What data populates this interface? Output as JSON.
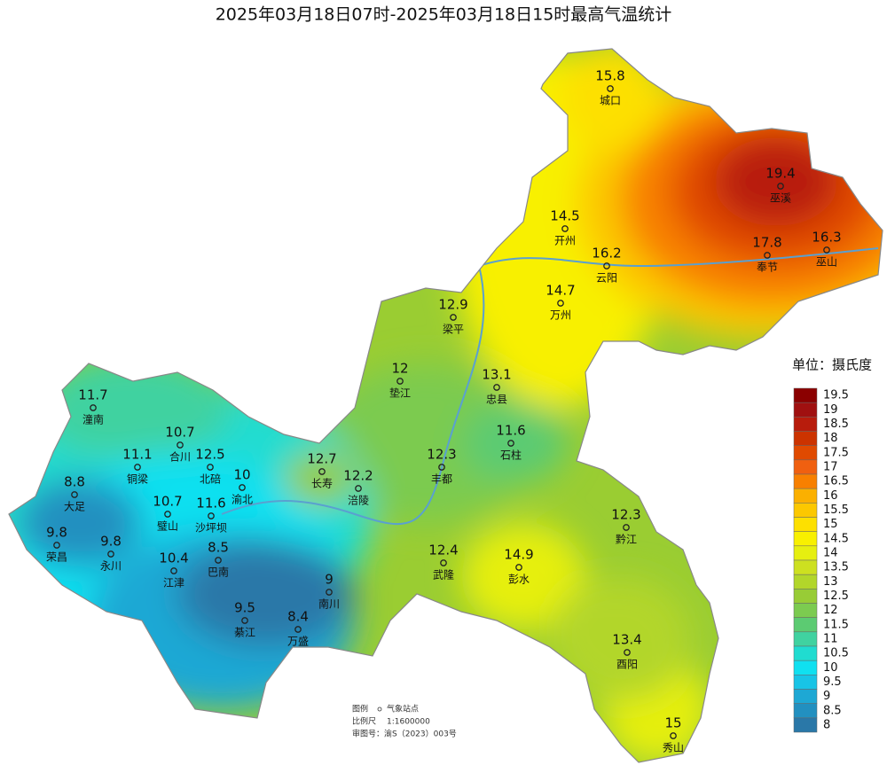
{
  "title": "2025年03月18日07时-2025年03月18日15时最高气温统计",
  "stations": [
    {
      "name": "城口",
      "value": 15.8
    },
    {
      "name": "巫溪",
      "value": 19.4
    },
    {
      "name": "开州",
      "value": 14.5
    },
    {
      "name": "云阳",
      "value": 16.2
    },
    {
      "name": "奉节",
      "value": 17.8
    },
    {
      "name": "巫山",
      "value": 16.3
    },
    {
      "name": "万州",
      "value": 14.7
    },
    {
      "name": "梁平",
      "value": 12.9
    },
    {
      "name": "垫江",
      "value": 12
    },
    {
      "name": "忠县",
      "value": 13.1
    },
    {
      "name": "潼南",
      "value": 11.7
    },
    {
      "name": "合川",
      "value": 10.7
    },
    {
      "name": "铜梁",
      "value": 11.1
    },
    {
      "name": "北碚",
      "value": 12.5
    },
    {
      "name": "长寿",
      "value": 12.7
    },
    {
      "name": "石柱",
      "value": 11.6
    },
    {
      "name": "渝北",
      "value": 10
    },
    {
      "name": "涪陵",
      "value": 12.2
    },
    {
      "name": "丰都",
      "value": 12.3
    },
    {
      "name": "大足",
      "value": 8.8
    },
    {
      "name": "璧山",
      "value": 10.7
    },
    {
      "name": "沙坪坝",
      "value": 11.6
    },
    {
      "name": "黔江",
      "value": 12.3
    },
    {
      "name": "荣昌",
      "value": 9.8
    },
    {
      "name": "永川",
      "value": 9.8
    },
    {
      "name": "巴南",
      "value": 8.5
    },
    {
      "name": "江津",
      "value": 10.4
    },
    {
      "name": "武隆",
      "value": 12.4
    },
    {
      "name": "彭水",
      "value": 14.9
    },
    {
      "name": "南川",
      "value": 9
    },
    {
      "name": "綦江",
      "value": 9.5
    },
    {
      "name": "万盛",
      "value": 8.4
    },
    {
      "name": "酉阳",
      "value": 13.4
    },
    {
      "name": "秀山",
      "value": 15
    }
  ],
  "legend": {
    "unit": "单位：摄氏度",
    "levels": [
      19.5,
      19,
      18.5,
      18,
      17.5,
      17,
      16.5,
      16,
      15.5,
      15,
      14.5,
      14,
      13.5,
      13,
      12.5,
      12,
      11.5,
      11,
      10.5,
      10,
      9.5,
      9,
      8.5,
      8
    ],
    "colors": [
      "#8b0000",
      "#a01010",
      "#b81c0c",
      "#cc3300",
      "#e04a00",
      "#f06010",
      "#f88000",
      "#fbb000",
      "#fcc800",
      "#fde000",
      "#f8f000",
      "#e6ef10",
      "#cde020",
      "#b2d62a",
      "#98cc36",
      "#7ccb50",
      "#5ccb72",
      "#40d2a0",
      "#20dcd0",
      "#10e0f0",
      "#18c4e6",
      "#1ea8d4",
      "#2290c0",
      "#2a78a8"
    ]
  },
  "notes": {
    "legend_label": "图例",
    "station_label": "气象站点",
    "scale_label": "比例尺",
    "scale": "1:1600000",
    "review_no": "审图号：渝S（2023）003号"
  }
}
